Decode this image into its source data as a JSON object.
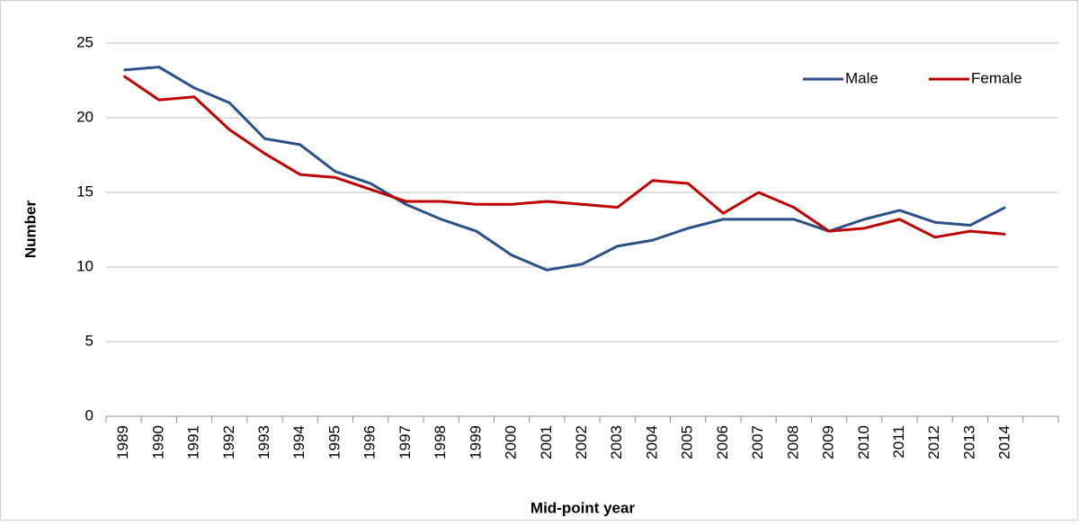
{
  "chart_data": {
    "type": "line",
    "x_label": "Mid-point year",
    "y_label": "Number",
    "categories": [
      "1989",
      "1990",
      "1991",
      "1992",
      "1993",
      "1994",
      "1995",
      "1996",
      "1997",
      "1998",
      "1999",
      "2000",
      "2001",
      "2002",
      "2003",
      "2004",
      "2005",
      "2006",
      "2007",
      "2008",
      "2009",
      "2010",
      "2011",
      "2012",
      "2013",
      "2014",
      null
    ],
    "series": [
      {
        "name": "Male",
        "color": "#2a5189",
        "values": [
          23.2,
          23.4,
          22.0,
          21.0,
          18.6,
          18.2,
          16.4,
          15.6,
          14.2,
          13.2,
          12.4,
          10.8,
          9.8,
          10.2,
          11.4,
          11.8,
          12.6,
          13.2,
          13.2,
          13.2,
          12.4,
          13.2,
          13.8,
          13.0,
          12.8,
          14.0,
          null
        ]
      },
      {
        "name": "Female",
        "color": "#c00000",
        "values": [
          22.8,
          21.2,
          21.4,
          19.2,
          17.6,
          16.2,
          16.0,
          15.2,
          14.4,
          14.4,
          14.2,
          14.2,
          14.4,
          14.2,
          14.0,
          15.8,
          15.6,
          13.6,
          15.0,
          14.0,
          12.4,
          12.6,
          13.2,
          12.0,
          12.4,
          12.2,
          null
        ]
      }
    ],
    "ylim": [
      0,
      25
    ],
    "yticks": [
      0,
      5,
      10,
      15,
      20,
      25
    ],
    "grid": true,
    "legend": "top-right"
  }
}
